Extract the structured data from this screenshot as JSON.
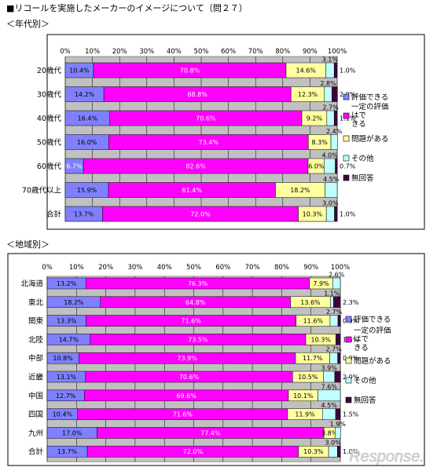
{
  "title": "■リコールを実施したメーカーのイメージについて（問２７）",
  "subtitles": [
    "＜年代別＞",
    "＜地域別＞"
  ],
  "watermark": "Response.",
  "colors": {
    "plot_bg": "#c0c0c0",
    "frame_bg": "#ffffff",
    "series": [
      "#8080ff",
      "#ff00ff",
      "#ffffa0",
      "#c0ffff",
      "#400040"
    ]
  },
  "chart_data": [
    {
      "type": "bar",
      "orientation": "horizontal",
      "stacked": "percent",
      "title": "＜年代別＞",
      "xlim": [
        0,
        100
      ],
      "xticks": [
        "0%",
        "10%",
        "20%",
        "30%",
        "40%",
        "50%",
        "60%",
        "70%",
        "80%",
        "90%",
        "100%"
      ],
      "legend_position": "right",
      "grid": true,
      "categories": [
        "20歳代",
        "30歳代",
        "40歳代",
        "50歳代",
        "60歳代",
        "70歳代以上",
        "合計"
      ],
      "series": [
        {
          "name": "評価できる",
          "values": [
            10.4,
            14.2,
            16.4,
            16.0,
            6.7,
            15.9,
            13.7
          ]
        },
        {
          "name": "一定の評価はできる",
          "values": [
            70.8,
            68.8,
            70.6,
            73.4,
            82.6,
            61.4,
            72.0
          ]
        },
        {
          "name": "問題がある",
          "values": [
            14.6,
            12.3,
            9.2,
            8.3,
            6.0,
            18.2,
            10.3
          ]
        },
        {
          "name": "その他",
          "values": [
            3.1,
            2.8,
            2.7,
            2.4,
            4.0,
            4.5,
            3.0
          ]
        },
        {
          "name": "無回答",
          "values": [
            1.0,
            2.0,
            1.1,
            0,
            0.7,
            0,
            1.0
          ]
        }
      ],
      "labels": [
        [
          "10.4%",
          "70.8%",
          "14.6%",
          "3.1%",
          "1.0%"
        ],
        [
          "14.2%",
          "68.8%",
          "12.3%",
          "2.8%",
          "2.0%"
        ],
        [
          "16.4%",
          "70.6%",
          "9.2%",
          "2.7%",
          "1.1%"
        ],
        [
          "16.0%",
          "73.4%",
          "8.3%",
          "2.4%",
          ""
        ],
        [
          "6.7%",
          "82.6%",
          "6.0%",
          "4.0%",
          "0.7%"
        ],
        [
          "15.9%",
          "61.4%",
          "18.2%",
          "4.5%",
          ""
        ],
        [
          "13.7%",
          "72.0%",
          "10.3%",
          "3.0%",
          "1.0%"
        ]
      ]
    },
    {
      "type": "bar",
      "orientation": "horizontal",
      "stacked": "percent",
      "title": "＜地域別＞",
      "xlim": [
        0,
        100
      ],
      "xticks": [
        "0%",
        "10%",
        "20%",
        "30%",
        "40%",
        "50%",
        "60%",
        "70%",
        "80%",
        "90%",
        "100%"
      ],
      "legend_position": "right",
      "grid": true,
      "categories": [
        "北海道",
        "東北",
        "関東",
        "北陸",
        "中部",
        "近畿",
        "中国",
        "四国",
        "九州",
        "合計"
      ],
      "series": [
        {
          "name": "評価できる",
          "values": [
            13.2,
            18.2,
            13.3,
            14.7,
            10.8,
            13.1,
            12.7,
            10.4,
            17.0,
            13.7
          ]
        },
        {
          "name": "一定の評価はできる",
          "values": [
            76.3,
            64.8,
            71.6,
            73.5,
            73.9,
            70.6,
            69.6,
            71.6,
            77.4,
            72.0
          ]
        },
        {
          "name": "問題がある",
          "values": [
            7.9,
            13.6,
            11.6,
            10.3,
            11.7,
            10.5,
            10.1,
            11.9,
            3.8,
            10.3
          ]
        },
        {
          "name": "その他",
          "values": [
            2.6,
            1.1,
            2.7,
            0,
            2.7,
            3.9,
            7.6,
            4.5,
            1.9,
            3.0
          ]
        },
        {
          "name": "無回答",
          "values": [
            0,
            2.3,
            0.9,
            1.5,
            0.9,
            2.0,
            0,
            1.5,
            0,
            1.0
          ]
        }
      ],
      "labels": [
        [
          "13.2%",
          "76.3%",
          "7.9%",
          "2.6%",
          ""
        ],
        [
          "18.2%",
          "64.8%",
          "13.6%",
          "1.1%",
          "2.3%"
        ],
        [
          "13.3%",
          "71.6%",
          "11.6%",
          "2.7%",
          "0.9%"
        ],
        [
          "14.7%",
          "73.5%",
          "10.3%",
          "",
          "1.5%"
        ],
        [
          "10.8%",
          "73.9%",
          "11.7%",
          "2.7%",
          "0.9%"
        ],
        [
          "13.1%",
          "70.6%",
          "10.5%",
          "3.9%",
          "2.0%"
        ],
        [
          "12.7%",
          "69.6%",
          "10.1%",
          "7.6%",
          ""
        ],
        [
          "10.4%",
          "71.6%",
          "11.9%",
          "4.5%",
          "1.5%"
        ],
        [
          "17.0%",
          "77.4%",
          "3.8%",
          "1.9%",
          ""
        ],
        [
          "13.7%",
          "72.0%",
          "10.3%",
          "3.0%",
          "1.0%"
        ]
      ]
    }
  ]
}
